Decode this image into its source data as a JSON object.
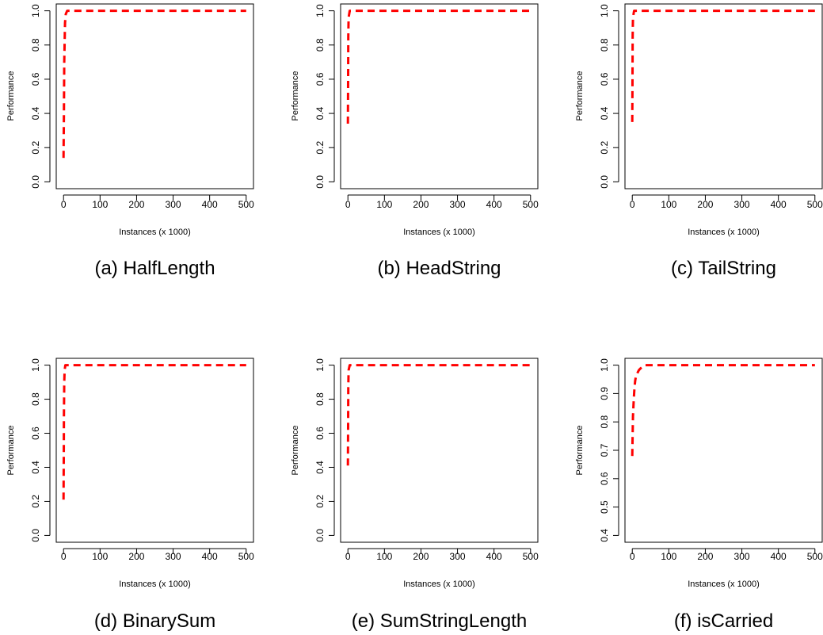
{
  "chart_data": [
    {
      "type": "line",
      "caption": "(a) HalfLength",
      "xlabel": "Instances (x 1000)",
      "ylabel": "Performance",
      "xlim": [
        0,
        500
      ],
      "ylim": [
        0.0,
        1.0
      ],
      "xticks": [
        0,
        100,
        200,
        300,
        400,
        500
      ],
      "yticks": [
        "0.0",
        "0.2",
        "0.4",
        "0.6",
        "0.8",
        "1.0"
      ],
      "grid": false,
      "series": [
        {
          "color": "#ff0000",
          "style": "dashed",
          "x": [
            0,
            1,
            2,
            4,
            6,
            10,
            20,
            50,
            100,
            200,
            300,
            400,
            500
          ],
          "y": [
            0.14,
            0.4,
            0.7,
            0.93,
            0.98,
            1.0,
            1.0,
            1.0,
            1.0,
            1.0,
            1.0,
            1.0,
            1.0
          ]
        }
      ]
    },
    {
      "type": "line",
      "caption": "(b) HeadString",
      "xlabel": "Instances (x 1000)",
      "ylabel": "Performance",
      "xlim": [
        0,
        500
      ],
      "ylim": [
        0.0,
        1.0
      ],
      "xticks": [
        0,
        100,
        200,
        300,
        400,
        500
      ],
      "yticks": [
        "0.0",
        "0.2",
        "0.4",
        "0.6",
        "0.8",
        "1.0"
      ],
      "grid": false,
      "series": [
        {
          "color": "#ff0000",
          "style": "dashed",
          "x": [
            0,
            0.5,
            1,
            2,
            5,
            10,
            50,
            100,
            200,
            300,
            400,
            500
          ],
          "y": [
            0.34,
            0.6,
            0.85,
            0.96,
            1.0,
            1.0,
            1.0,
            1.0,
            1.0,
            1.0,
            1.0,
            1.0
          ]
        }
      ]
    },
    {
      "type": "line",
      "caption": "(c) TailString",
      "xlabel": "Instances (x 1000)",
      "ylabel": "Performance",
      "xlim": [
        0,
        500
      ],
      "ylim": [
        0.0,
        1.0
      ],
      "xticks": [
        0,
        100,
        200,
        300,
        400,
        500
      ],
      "yticks": [
        "0.0",
        "0.2",
        "0.4",
        "0.6",
        "0.8",
        "1.0"
      ],
      "grid": false,
      "series": [
        {
          "color": "#ff0000",
          "style": "dashed",
          "x": [
            0,
            0.5,
            1,
            2,
            5,
            10,
            50,
            100,
            200,
            300,
            400,
            500
          ],
          "y": [
            0.35,
            0.6,
            0.85,
            0.96,
            1.0,
            1.0,
            1.0,
            1.0,
            1.0,
            1.0,
            1.0,
            1.0
          ]
        }
      ]
    },
    {
      "type": "line",
      "caption": "(d) BinarySum",
      "xlabel": "Instances (x 1000)",
      "ylabel": "Performance",
      "xlim": [
        0,
        500
      ],
      "ylim": [
        0.0,
        1.0
      ],
      "xticks": [
        0,
        100,
        200,
        300,
        400,
        500
      ],
      "yticks": [
        "0.0",
        "0.2",
        "0.4",
        "0.6",
        "0.8",
        "1.0"
      ],
      "grid": false,
      "series": [
        {
          "color": "#ff0000",
          "style": "dashed",
          "x": [
            0,
            0.5,
            1,
            2,
            3,
            5,
            10,
            50,
            100,
            200,
            300,
            400,
            500
          ],
          "y": [
            0.21,
            0.45,
            0.7,
            0.9,
            0.97,
            1.0,
            1.0,
            1.0,
            1.0,
            1.0,
            1.0,
            1.0,
            1.0
          ]
        }
      ]
    },
    {
      "type": "line",
      "caption": "(e) SumStringLength",
      "xlabel": "Instances (x 1000)",
      "ylabel": "Performance",
      "xlim": [
        0,
        500
      ],
      "ylim": [
        0.0,
        1.0
      ],
      "xticks": [
        0,
        100,
        200,
        300,
        400,
        500
      ],
      "yticks": [
        "0.0",
        "0.2",
        "0.4",
        "0.6",
        "0.8",
        "1.0"
      ],
      "grid": false,
      "series": [
        {
          "color": "#ff0000",
          "style": "dashed",
          "x": [
            0,
            0.5,
            1,
            2,
            5,
            10,
            50,
            100,
            200,
            300,
            400,
            500
          ],
          "y": [
            0.41,
            0.65,
            0.87,
            0.97,
            1.0,
            1.0,
            1.0,
            1.0,
            1.0,
            1.0,
            1.0,
            1.0
          ]
        }
      ]
    },
    {
      "type": "line",
      "caption": "(f) isCarried",
      "xlabel": "Instances (x 1000)",
      "ylabel": "Performance",
      "xlim": [
        0,
        500
      ],
      "ylim": [
        0.4,
        1.0
      ],
      "xticks": [
        0,
        100,
        200,
        300,
        400,
        500
      ],
      "yticks": [
        "0.4",
        "0.5",
        "0.6",
        "0.7",
        "0.8",
        "0.9",
        "1.0"
      ],
      "grid": false,
      "series": [
        {
          "color": "#ff0000",
          "style": "dashed",
          "x": [
            0,
            2,
            4,
            6,
            8,
            10,
            14,
            18,
            22,
            26,
            30,
            35,
            40,
            60,
            100,
            200,
            300,
            400,
            500
          ],
          "y": [
            0.68,
            0.82,
            0.88,
            0.92,
            0.945,
            0.96,
            0.972,
            0.982,
            0.988,
            0.992,
            0.996,
            1.0,
            1.0,
            1.0,
            1.0,
            1.0,
            1.0,
            1.0,
            1.0
          ]
        }
      ]
    }
  ]
}
